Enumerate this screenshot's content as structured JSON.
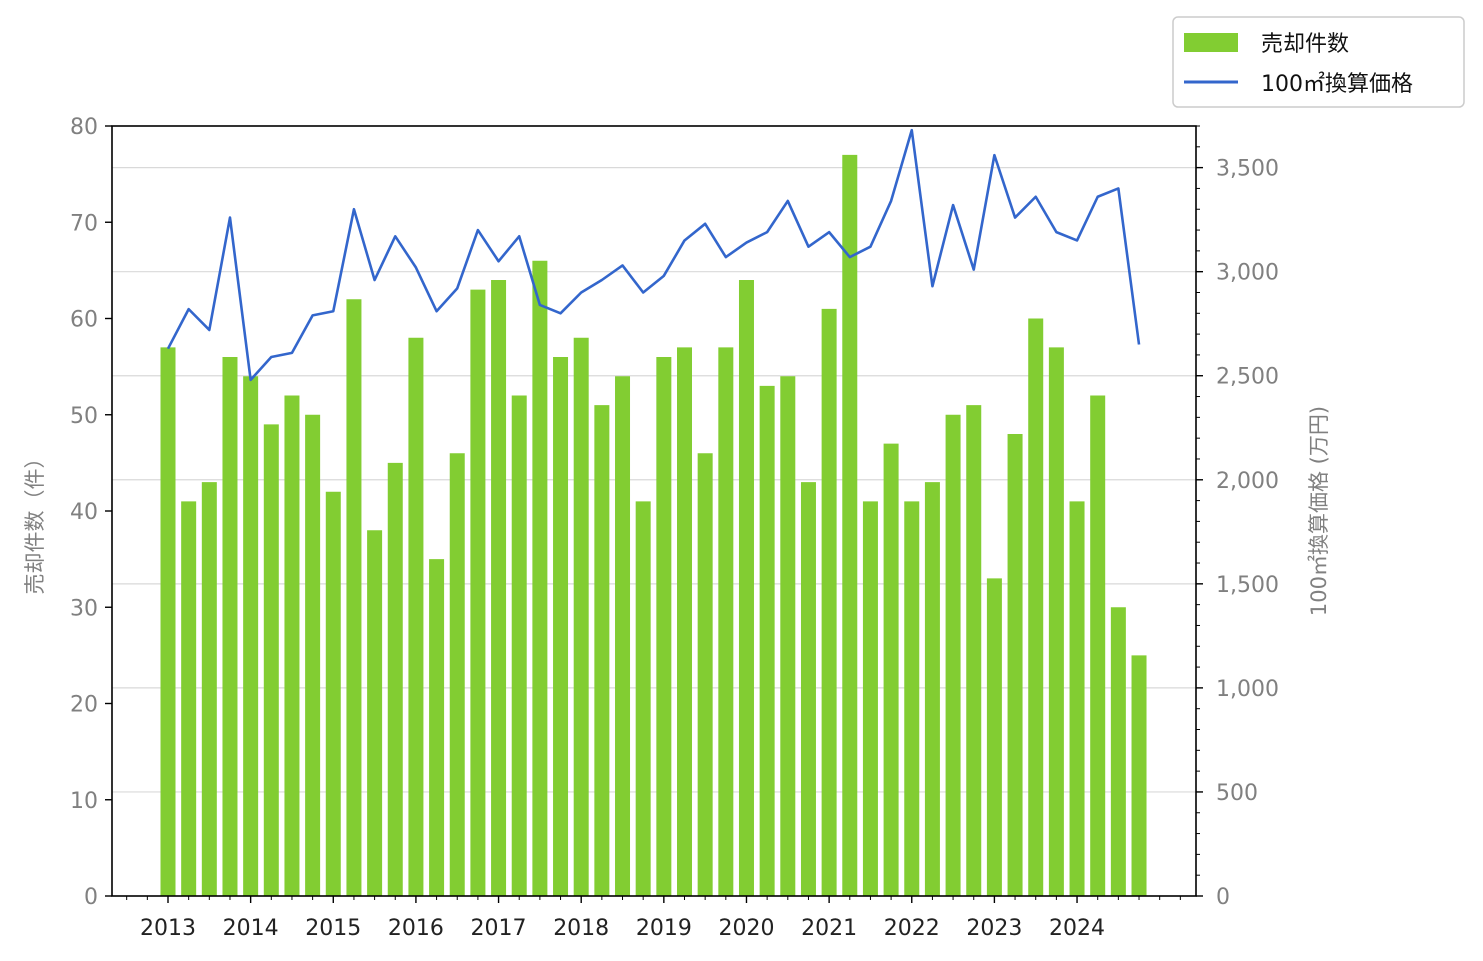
{
  "chart_data": {
    "type": "bar",
    "x_tick_labels": [
      "2013",
      "2014",
      "2015",
      "2016",
      "2017",
      "2018",
      "2019",
      "2020",
      "2021",
      "2022",
      "2023",
      "2024"
    ],
    "ylabel_left": "売却件数（件）",
    "ylabel_right": "100㎡換算価格 (万円)",
    "ylim_left": [
      0,
      80
    ],
    "ylim_right": [
      0,
      3700
    ],
    "yticks_left": [
      0,
      10,
      20,
      30,
      40,
      50,
      60,
      70,
      80
    ],
    "yticks_right": [
      0,
      500,
      1000,
      1500,
      2000,
      2500,
      3000,
      3500
    ],
    "yticks_right_labels": [
      "0",
      "500",
      "1,000",
      "1,500",
      "2,000",
      "2,500",
      "3,000",
      "3,500"
    ],
    "grid": "horizontal",
    "legend_position": "top-right",
    "series": [
      {
        "name": "売却件数",
        "kind": "bar",
        "axis": "left",
        "color": "#82cd32",
        "values": [
          57,
          41,
          43,
          56,
          54,
          49,
          52,
          50,
          42,
          62,
          38,
          45,
          58,
          35,
          46,
          63,
          64,
          52,
          66,
          56,
          58,
          51,
          54,
          41,
          56,
          57,
          46,
          57,
          64,
          53,
          54,
          43,
          61,
          77,
          41,
          47,
          41,
          43,
          50,
          51,
          33,
          48,
          60,
          57,
          41,
          52,
          30,
          25
        ]
      },
      {
        "name": "100㎡換算価格",
        "kind": "line",
        "axis": "right",
        "color": "#3366cc",
        "values": [
          2630,
          2820,
          2720,
          3260,
          2480,
          2590,
          2610,
          2790,
          2810,
          3300,
          2960,
          3170,
          3020,
          2810,
          2920,
          3200,
          3050,
          3170,
          2840,
          2800,
          2900,
          2960,
          3030,
          2900,
          2980,
          3150,
          3230,
          3070,
          3140,
          3190,
          3340,
          3120,
          3190,
          3070,
          3120,
          3340,
          3680,
          2930,
          3320,
          3010,
          3560,
          3260,
          3360,
          3190,
          3150,
          3360,
          3400,
          2650
        ]
      }
    ]
  }
}
